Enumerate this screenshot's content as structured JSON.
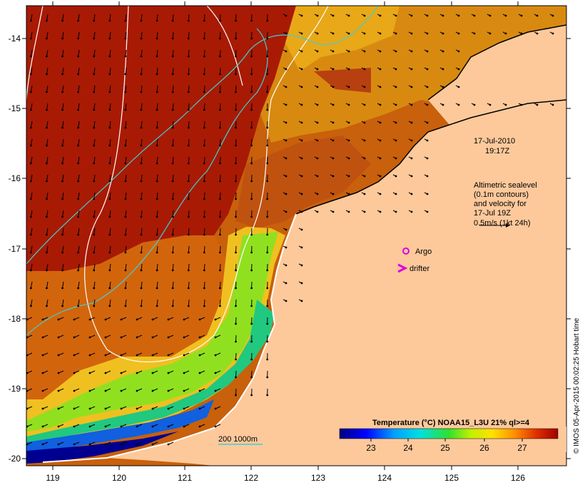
{
  "map": {
    "lon_ticks": [
      "119",
      "120",
      "121",
      "122",
      "123",
      "124",
      "125",
      "126"
    ],
    "lat_ticks": [
      "-14",
      "-15",
      "-16",
      "-17",
      "-18",
      "-19",
      "-20"
    ],
    "timestamp_date": "17-Jul-2010",
    "timestamp_time": "19:17Z",
    "altimetry_note": [
      "Altimetric sealevel",
      "(0.1m contours)",
      "and velocity for",
      "17-Jul 19Z",
      "0.5m/s (1kt 24h)"
    ],
    "argo_label": "Argo",
    "drifter_label": "drifter",
    "depth_contour_label": "200  1000m",
    "legend_title": "Temperature (°C) NOAA15_L3U 21% ql>=4",
    "legend_ticks": [
      "23",
      "24",
      "25",
      "26",
      "27"
    ],
    "credit": "© IMOS 05-Apr-2015 00:02:25 Hobart time"
  },
  "colors": {
    "land": "#fdc99b",
    "warm": "#b81e04",
    "mid": "#d96a10",
    "argo": "#e000e0",
    "drifter": "#e000e0",
    "depth_contour": "#40d0d0",
    "sealevel_contour": "#ffffff"
  }
}
